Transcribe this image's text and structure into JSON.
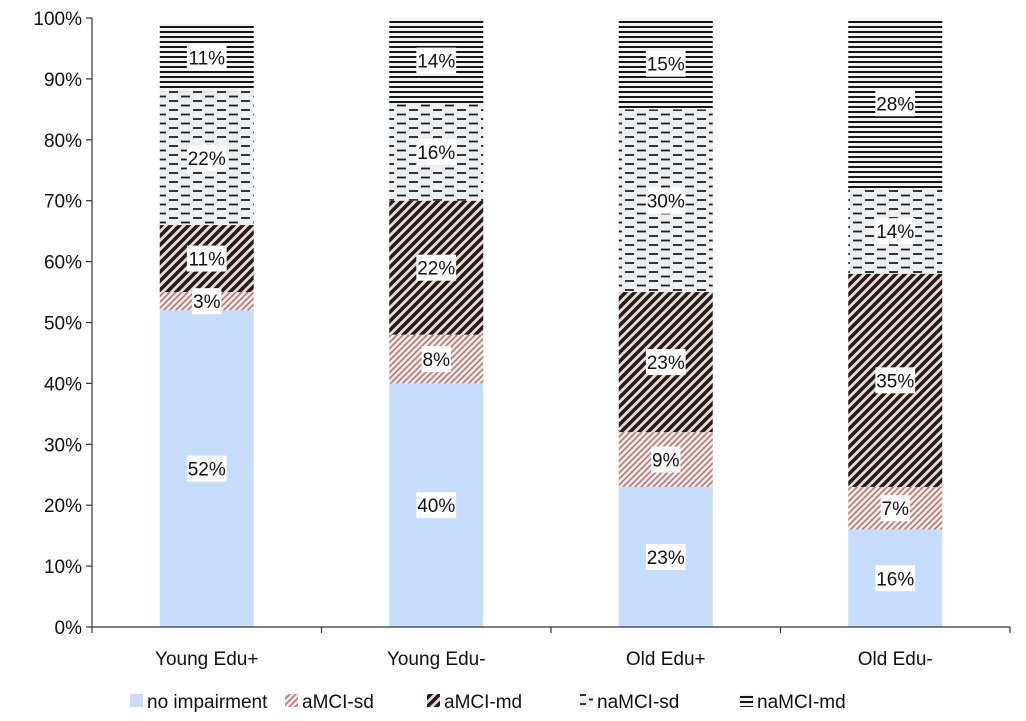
{
  "chart_data": {
    "type": "bar",
    "stacked": true,
    "categories": [
      "Young Edu+",
      "Young Edu-",
      "Old Edu+",
      "Old Edu-"
    ],
    "series": [
      {
        "name": "no impairment",
        "values": [
          52,
          40,
          23,
          16
        ],
        "labels": [
          "52%",
          "40%",
          "23%",
          "16%"
        ],
        "color": "#c5dcfb",
        "pattern": "solid"
      },
      {
        "name": "aMCI-sd",
        "values": [
          3,
          8,
          9,
          7
        ],
        "labels": [
          "3%",
          "8%",
          "9%",
          "7%"
        ],
        "color": "#e8c8c8",
        "pattern": "dense-diagonal"
      },
      {
        "name": "aMCI-md",
        "values": [
          11,
          22,
          23,
          35
        ],
        "labels": [
          "11%",
          "22%",
          "23%",
          "35%"
        ],
        "color": "#2a2323",
        "pattern": "wide-diagonal"
      },
      {
        "name": "naMCI-sd",
        "values": [
          22,
          16,
          30,
          14
        ],
        "labels": [
          "22%",
          "16%",
          "30%",
          "14%"
        ],
        "color": "#3a3a3a",
        "pattern": "dashed-horizontal"
      },
      {
        "name": "naMCI-md",
        "values": [
          11,
          14,
          15,
          28
        ],
        "labels": [
          "11%",
          "14%",
          "15%",
          "28%"
        ],
        "color": "#222222",
        "pattern": "horizontal-lines"
      }
    ],
    "yticks": [
      "0%",
      "10%",
      "20%",
      "30%",
      "40%",
      "50%",
      "60%",
      "70%",
      "80%",
      "90%",
      "100%"
    ],
    "ylim": [
      0,
      100
    ],
    "grid": false,
    "legend_position": "bottom"
  }
}
